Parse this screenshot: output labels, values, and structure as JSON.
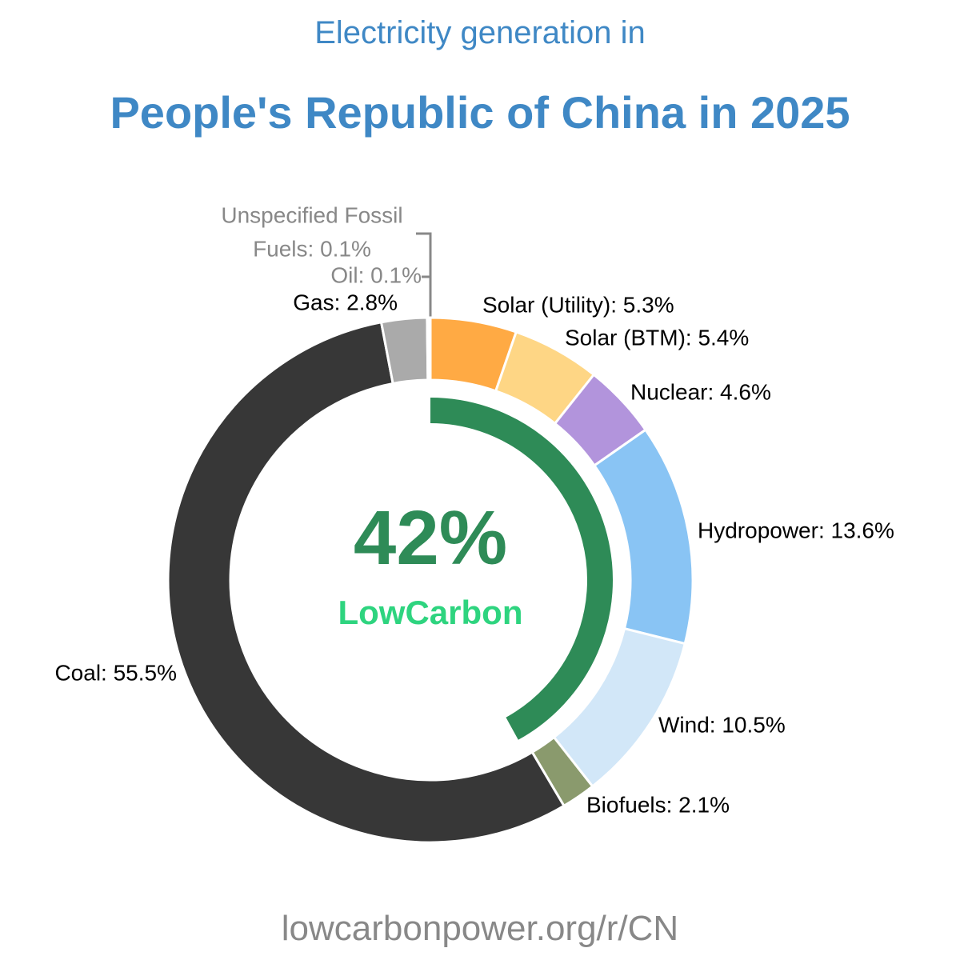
{
  "chart_data": {
    "type": "pie",
    "subtitle": "Electricity generation in",
    "title": "People's Republic of China in 2025",
    "values": [
      5.3,
      5.4,
      4.6,
      13.6,
      10.5,
      2.1,
      55.5,
      2.8,
      0.1,
      0.1
    ],
    "value_labels": [
      "Solar (Utility): 5.3%",
      "Solar (BTM): 5.4%",
      "Nuclear: 4.6%",
      "Hydropower: 13.6%",
      "Wind: 10.5%",
      "Biofuels: 2.1%",
      "Coal: 55.5%",
      "Gas: 2.8%",
      "Oil: 0.1%",
      [
        "Unspecified Fossil",
        "Fuels: 0.1%"
      ]
    ],
    "colors": [
      "#ffaa44",
      "#fed685",
      "#b294dc",
      "#89c4f4",
      "#d2e7f8",
      "#8a9a6d",
      "#373737",
      "#aaaaaa",
      "#9a9a9a",
      "#8a8a8a"
    ],
    "center_value": {
      "value": 42,
      "label": "42%"
    },
    "center_caption": "LowCarbon",
    "center_color": "#2e8b57",
    "footer": "lowcarbonpower.org/r/CN"
  }
}
